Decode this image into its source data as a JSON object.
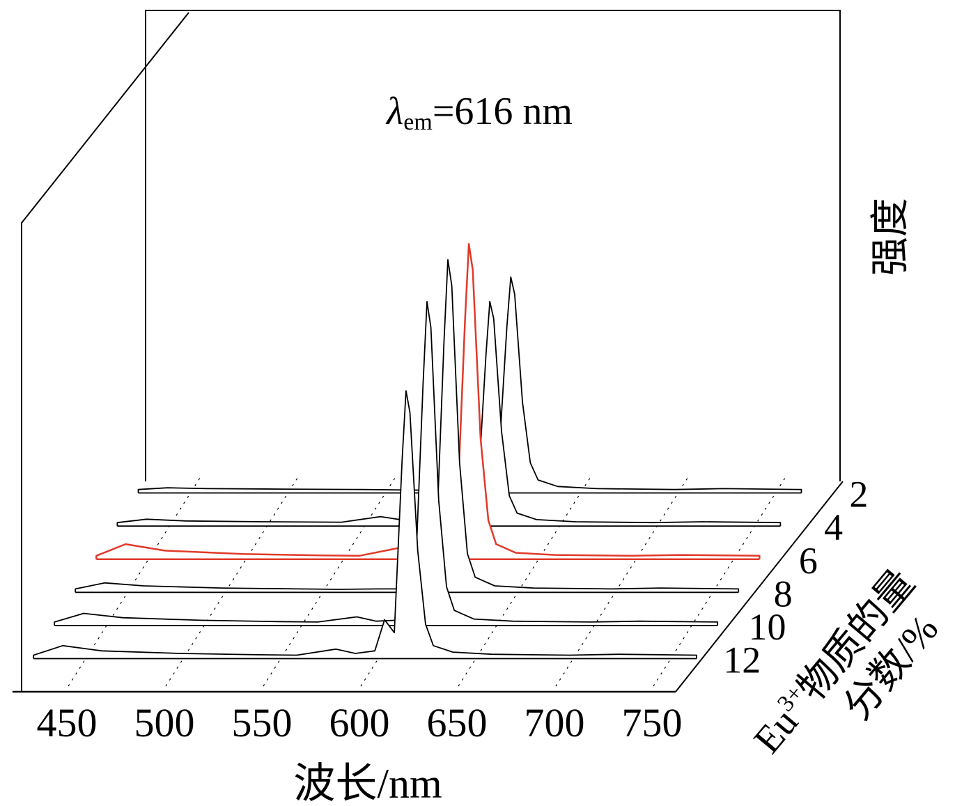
{
  "chart_data": {
    "type": "line",
    "title": "λem=616 nm",
    "title_parts": {
      "symbol": "λ",
      "subscript": "em",
      "rest": "=616 nm"
    },
    "xlabel": "波长/nm",
    "ylabel": "强度",
    "zlabel": {
      "main": "Eu",
      "superscript": "3+",
      "line1_rest": "物质的量",
      "line2": "分数/%"
    },
    "x_ticks": [
      450,
      500,
      550,
      600,
      650,
      700,
      750
    ],
    "xlim": [
      425,
      765
    ],
    "z_ticks": [
      2,
      4,
      6,
      8,
      10,
      12
    ],
    "highlight_series": "6",
    "colors": {
      "default": "#000000",
      "highlight": "#e03a2a"
    },
    "series": [
      {
        "name": "2",
        "x": [
          425,
          440,
          460,
          500,
          540,
          560,
          580,
          590,
          600,
          605,
          610,
          614,
          616,
          618,
          622,
          626,
          630,
          640,
          660,
          700,
          725,
          765
        ],
        "y": [
          0.08,
          0.12,
          0.1,
          0.09,
          0.08,
          0.07,
          0.06,
          0.08,
          0.1,
          0.2,
          0.9,
          3.85,
          5.0,
          4.6,
          2.1,
          0.7,
          0.3,
          0.15,
          0.1,
          0.08,
          0.1,
          0.08
        ]
      },
      {
        "name": "4",
        "x": [
          425,
          440,
          460,
          500,
          540,
          560,
          580,
          590,
          600,
          605,
          610,
          614,
          616,
          618,
          622,
          626,
          630,
          640,
          660,
          700,
          725,
          765
        ],
        "y": [
          0.08,
          0.16,
          0.12,
          0.1,
          0.09,
          0.22,
          0.08,
          0.08,
          0.1,
          0.2,
          0.9,
          3.95,
          5.2,
          4.8,
          2.2,
          0.7,
          0.3,
          0.15,
          0.1,
          0.08,
          0.1,
          0.08
        ]
      },
      {
        "name": "6",
        "x": [
          425,
          440,
          460,
          500,
          540,
          560,
          580,
          590,
          600,
          605,
          610,
          614,
          616,
          618,
          622,
          626,
          630,
          640,
          660,
          700,
          725,
          765
        ],
        "y": [
          0.08,
          0.35,
          0.2,
          0.12,
          0.09,
          0.08,
          0.26,
          0.1,
          0.1,
          0.2,
          1.1,
          5.5,
          7.3,
          6.7,
          2.8,
          0.9,
          0.35,
          0.15,
          0.1,
          0.08,
          0.1,
          0.08
        ]
      },
      {
        "name": "8",
        "x": [
          425,
          440,
          460,
          500,
          540,
          560,
          580,
          590,
          600,
          605,
          610,
          614,
          616,
          618,
          622,
          626,
          630,
          640,
          660,
          700,
          725,
          765
        ],
        "y": [
          0.08,
          0.22,
          0.15,
          0.1,
          0.08,
          0.07,
          0.08,
          0.08,
          0.1,
          0.2,
          1.1,
          5.8,
          7.7,
          7.1,
          3.0,
          0.9,
          0.35,
          0.15,
          0.1,
          0.08,
          0.1,
          0.08
        ]
      },
      {
        "name": "10",
        "x": [
          425,
          440,
          460,
          500,
          540,
          560,
          580,
          590,
          600,
          605,
          610,
          614,
          616,
          618,
          622,
          626,
          630,
          640,
          660,
          700,
          725,
          765
        ],
        "y": [
          0.08,
          0.28,
          0.18,
          0.12,
          0.09,
          0.08,
          0.2,
          0.1,
          0.12,
          0.25,
          1.1,
          5.6,
          7.5,
          6.9,
          2.9,
          0.9,
          0.35,
          0.15,
          0.1,
          0.08,
          0.1,
          0.08
        ]
      },
      {
        "name": "12",
        "x": [
          425,
          440,
          460,
          500,
          540,
          560,
          580,
          590,
          600,
          605,
          610,
          614,
          616,
          618,
          622,
          626,
          630,
          640,
          660,
          700,
          725,
          765
        ],
        "y": [
          0.08,
          0.3,
          0.18,
          0.12,
          0.09,
          0.08,
          0.22,
          0.12,
          0.18,
          0.9,
          0.6,
          4.6,
          6.2,
          5.7,
          2.5,
          0.8,
          0.3,
          0.15,
          0.1,
          0.08,
          0.1,
          0.08
        ]
      }
    ]
  }
}
